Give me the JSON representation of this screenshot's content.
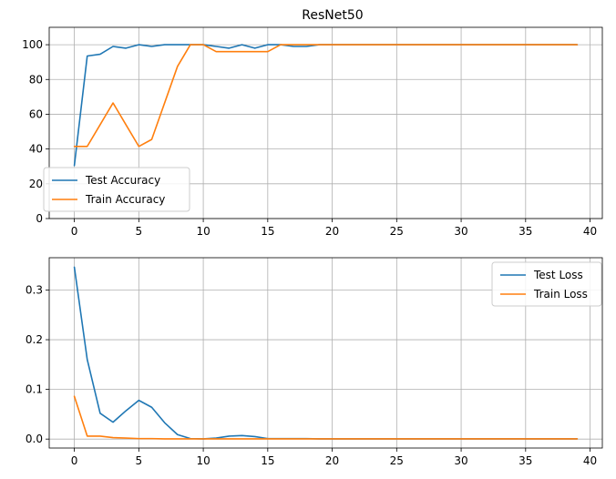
{
  "chart_data": [
    {
      "type": "line",
      "title": "ResNet50",
      "xlabel": "",
      "ylabel": "",
      "xlim": [
        -1.95,
        40.95
      ],
      "ylim": [
        0,
        110
      ],
      "xticks": [
        0,
        5,
        10,
        15,
        20,
        25,
        30,
        35,
        40
      ],
      "yticks": [
        0,
        20,
        40,
        60,
        80,
        100
      ],
      "grid": true,
      "legend": "lower-left",
      "x": [
        0,
        1,
        2,
        3,
        4,
        5,
        6,
        7,
        8,
        9,
        10,
        11,
        12,
        13,
        14,
        15,
        16,
        17,
        18,
        19,
        20,
        21,
        22,
        23,
        24,
        25,
        26,
        27,
        28,
        29,
        30,
        31,
        32,
        33,
        34,
        35,
        36,
        37,
        38,
        39
      ],
      "series": [
        {
          "name": "Test Accuracy",
          "color": "#1f77b4",
          "values": [
            30.5,
            93.5,
            94.5,
            99,
            98,
            100,
            99,
            100,
            100,
            100,
            100,
            99,
            98,
            100,
            98,
            100,
            100,
            99,
            99,
            100,
            100,
            100,
            100,
            100,
            100,
            100,
            100,
            100,
            100,
            100,
            100,
            100,
            100,
            100,
            100,
            100,
            100,
            100,
            100,
            100
          ]
        },
        {
          "name": "Train Accuracy",
          "color": "#ff7f0e",
          "values": [
            41.5,
            41.5,
            54,
            66.5,
            54,
            41.5,
            45.5,
            66.5,
            87.5,
            100,
            100,
            96,
            96,
            96,
            96,
            96,
            100,
            100,
            100,
            100,
            100,
            100,
            100,
            100,
            100,
            100,
            100,
            100,
            100,
            100,
            100,
            100,
            100,
            100,
            100,
            100,
            100,
            100,
            100,
            100
          ]
        }
      ]
    },
    {
      "type": "line",
      "title": "",
      "xlabel": "",
      "ylabel": "",
      "xlim": [
        -1.95,
        40.95
      ],
      "ylim": [
        -0.018,
        0.365
      ],
      "xticks": [
        0,
        5,
        10,
        15,
        20,
        25,
        30,
        35,
        40
      ],
      "yticks": [
        0.0,
        0.1,
        0.2,
        0.3
      ],
      "ytick_labels": [
        "0.0",
        "0.1",
        "0.2",
        "0.3"
      ],
      "grid": true,
      "legend": "upper-right",
      "x": [
        0,
        1,
        2,
        3,
        4,
        5,
        6,
        7,
        8,
        9,
        10,
        11,
        12,
        13,
        14,
        15,
        16,
        17,
        18,
        19,
        20,
        21,
        22,
        23,
        24,
        25,
        26,
        27,
        28,
        29,
        30,
        31,
        32,
        33,
        34,
        35,
        36,
        37,
        38,
        39
      ],
      "series": [
        {
          "name": "Test Loss",
          "color": "#1f77b4",
          "values": [
            0.346,
            0.16,
            0.052,
            0.034,
            0.057,
            0.078,
            0.064,
            0.033,
            0.009,
            0.001,
            0.0005,
            0.002,
            0.006,
            0.007,
            0.005,
            0.001,
            0.001,
            0.001,
            0.001,
            0.0005,
            0.0005,
            0.0005,
            0.0005,
            0.0005,
            0.0005,
            0.0005,
            0.0005,
            0.0005,
            0.0005,
            0.0005,
            0.0005,
            0.0005,
            0.0005,
            0.0005,
            0.0005,
            0.0005,
            0.0005,
            0.0005,
            0.0005,
            0.0005
          ]
        },
        {
          "name": "Train Loss",
          "color": "#ff7f0e",
          "values": [
            0.086,
            0.006,
            0.006,
            0.003,
            0.002,
            0.001,
            0.001,
            0.0005,
            0.0005,
            0.0005,
            0.0005,
            0.0005,
            0.0005,
            0.0005,
            0.0005,
            0.0005,
            0.0005,
            0.0005,
            0.0005,
            0.0005,
            0.0005,
            0.0005,
            0.0005,
            0.0005,
            0.0005,
            0.0005,
            0.0005,
            0.0005,
            0.0005,
            0.0005,
            0.0005,
            0.0005,
            0.0005,
            0.0005,
            0.0005,
            0.0005,
            0.0005,
            0.0005,
            0.0005,
            0.0005
          ]
        }
      ]
    }
  ]
}
